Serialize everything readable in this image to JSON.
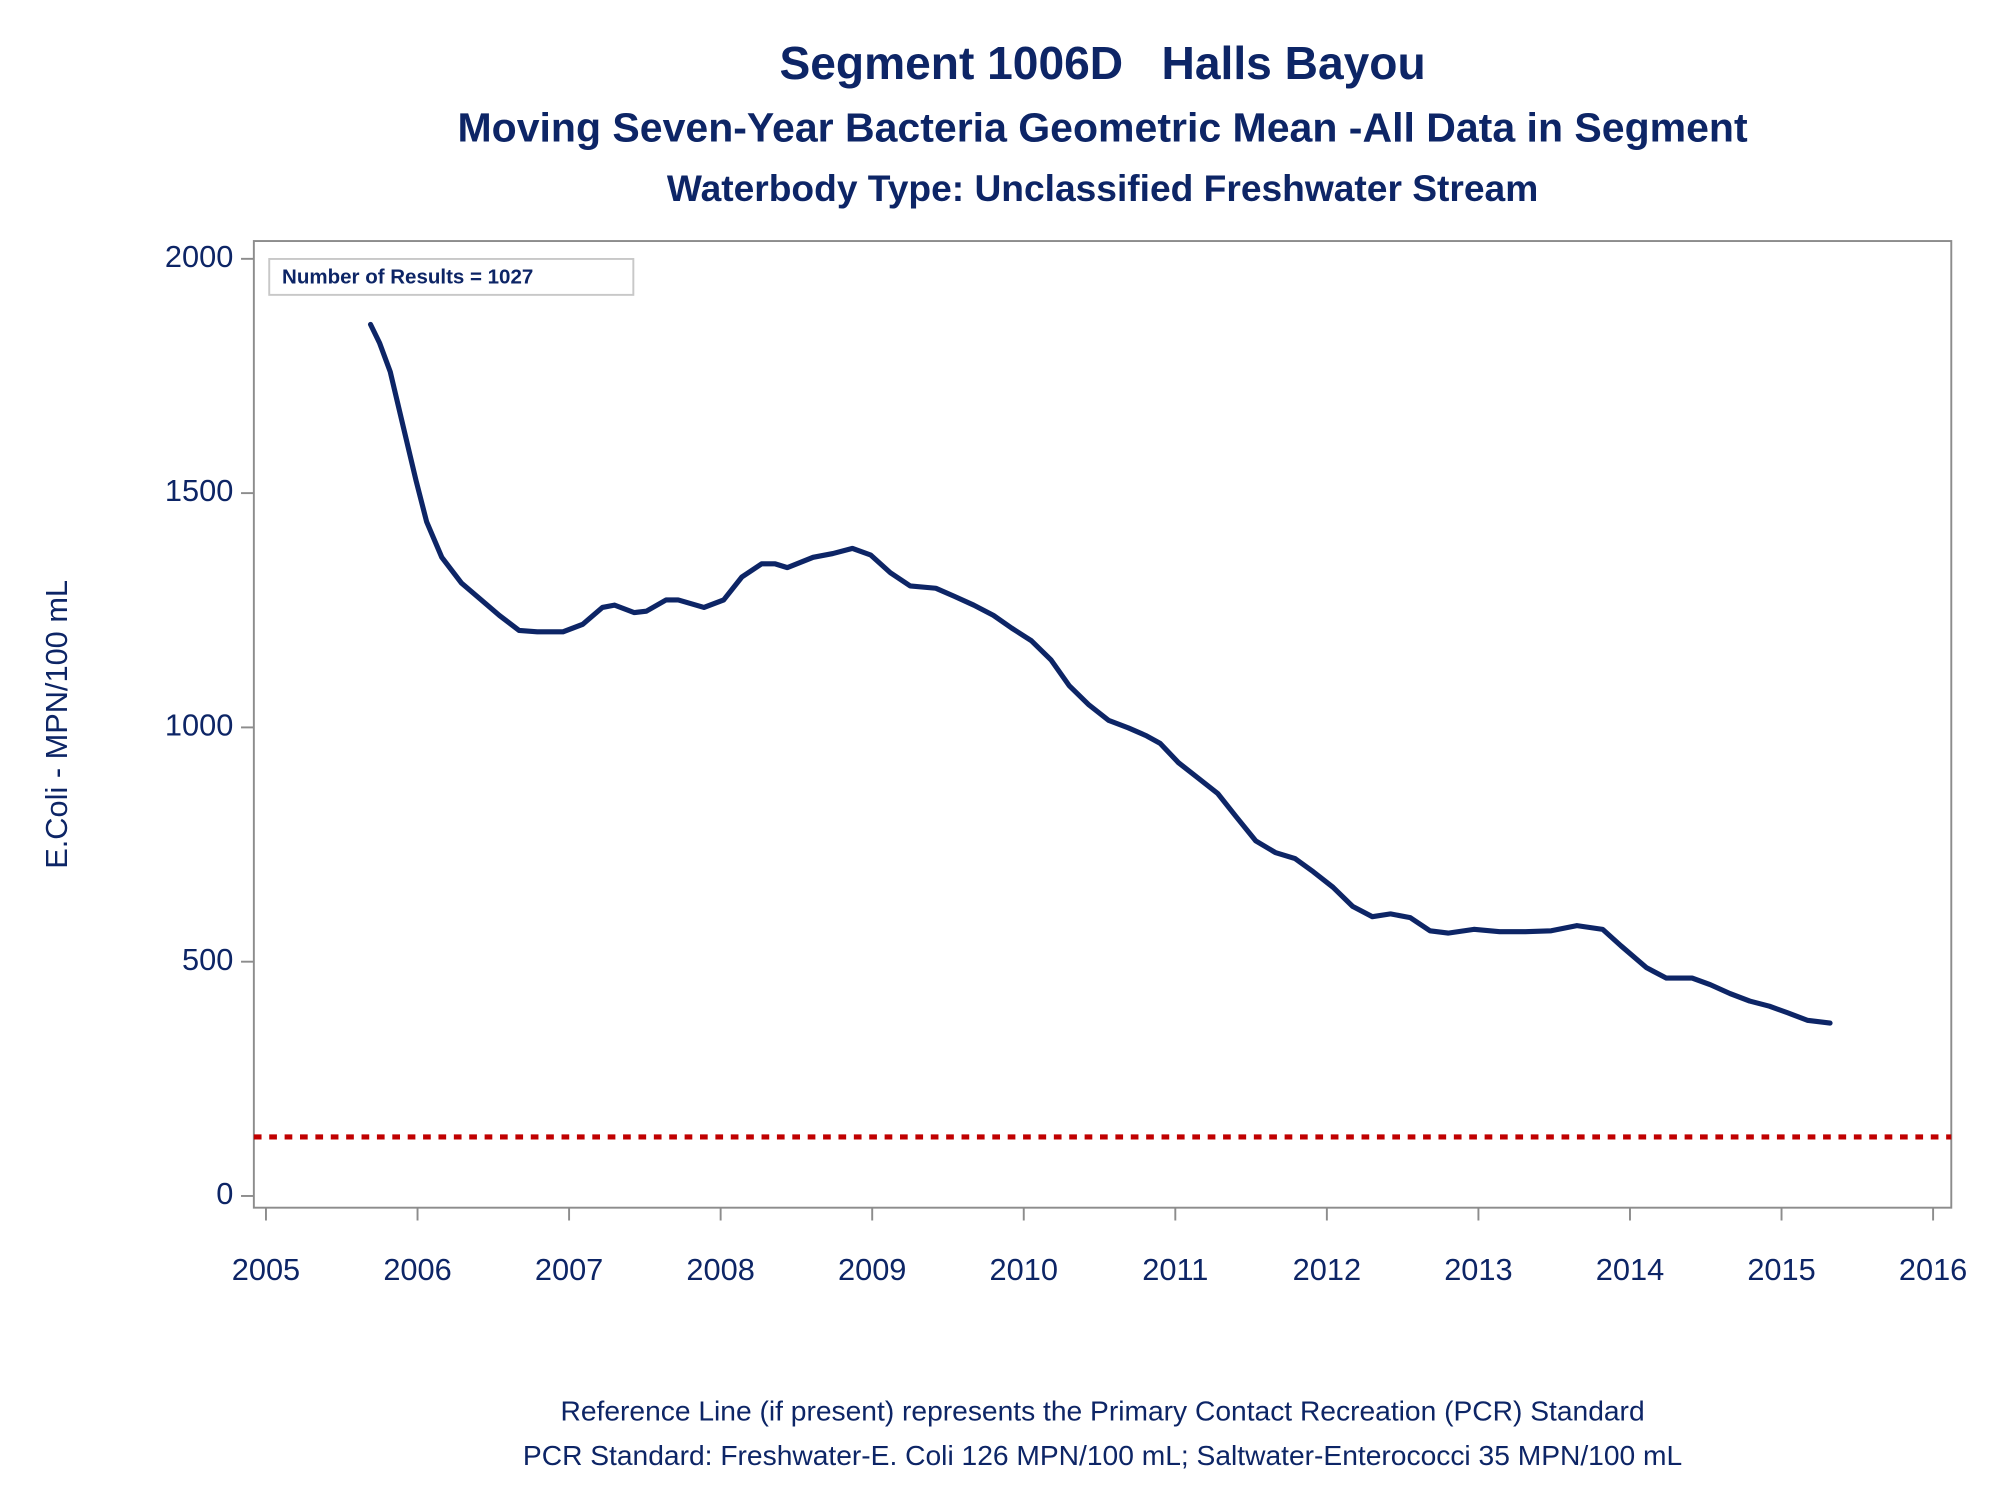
{
  "chart_data": {
    "type": "line",
    "title": "Segment 1006D   Halls Bayou",
    "subtitles": [
      "Moving Seven-Year Bacteria Geometric Mean -All Data in Segment",
      "Waterbody Type: Unclassified Freshwater Stream"
    ],
    "annotation": "Number of Results = 1027",
    "y_label": "E.Coli - MPN/100 mL",
    "footnotes": [
      "Reference Line (if present) represents the Primary Contact Recreation (PCR) Standard",
      "PCR Standard: Freshwater-E. Coli 126 MPN/100 mL; Saltwater-Enterococci 35 MPN/100 mL"
    ],
    "x": [
      2005.69,
      2005.75,
      2005.82,
      2005.91,
      2005.99,
      2006.06,
      2006.16,
      2006.29,
      2006.41,
      2006.54,
      2006.67,
      2006.79,
      2006.96,
      2007.09,
      2007.22,
      2007.3,
      2007.43,
      2007.51,
      2007.64,
      2007.72,
      2007.89,
      2008.02,
      2008.14,
      2008.27,
      2008.36,
      2008.44,
      2008.61,
      2008.74,
      2008.87,
      2008.99,
      2009.12,
      2009.25,
      2009.42,
      2009.54,
      2009.67,
      2009.8,
      2009.92,
      2010.05,
      2010.18,
      2010.3,
      2010.43,
      2010.56,
      2010.69,
      2010.81,
      2010.9,
      2011.02,
      2011.15,
      2011.28,
      2011.4,
      2011.53,
      2011.66,
      2011.79,
      2011.91,
      2012.04,
      2012.17,
      2012.3,
      2012.42,
      2012.55,
      2012.68,
      2012.8,
      2012.97,
      2013.14,
      2013.31,
      2013.48,
      2013.65,
      2013.82,
      2013.94,
      2014.11,
      2014.24,
      2014.41,
      2014.53,
      2014.66,
      2014.79,
      2014.92,
      2015.04,
      2015.17,
      2015.32
    ],
    "values": [
      1860,
      1820,
      1759,
      1636,
      1527,
      1439,
      1363,
      1308,
      1275,
      1239,
      1207,
      1204,
      1204,
      1220,
      1256,
      1261,
      1245,
      1248,
      1272,
      1272,
      1256,
      1272,
      1321,
      1349,
      1349,
      1341,
      1363,
      1371,
      1382,
      1368,
      1330,
      1302,
      1297,
      1280,
      1261,
      1239,
      1212,
      1185,
      1144,
      1089,
      1048,
      1015,
      999,
      982,
      966,
      925,
      892,
      859,
      810,
      758,
      733,
      720,
      692,
      659,
      618,
      596,
      602,
      594,
      566,
      561,
      569,
      564,
      564,
      566,
      577,
      569,
      534,
      487,
      465,
      465,
      451,
      432,
      416,
      405,
      391,
      375,
      369
    ],
    "color": "#0d2566",
    "reference_line": {
      "value": 126,
      "color": "#c00000"
    },
    "xlim": [
      2004.92,
      2016.12
    ],
    "xticks": [
      2005,
      2006,
      2007,
      2008,
      2009,
      2010,
      2011,
      2012,
      2013,
      2014,
      2015,
      2016
    ],
    "ylim": [
      -25,
      2038
    ],
    "yticks": [
      0,
      500,
      1000,
      1500,
      2000
    ]
  }
}
